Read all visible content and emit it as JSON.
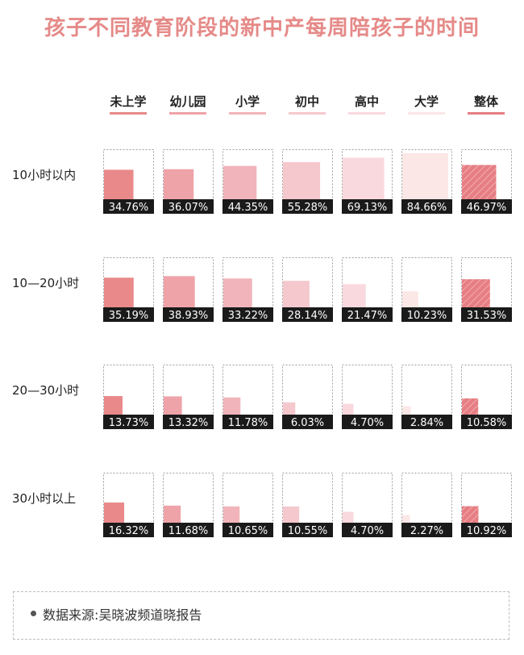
{
  "chart_data": {
    "type": "area",
    "title": "孩子不同教育阶段的新中产每周陪孩子的时间",
    "categories": [
      "未上学",
      "幼儿园",
      "小学",
      "初中",
      "高中",
      "大学",
      "整体"
    ],
    "rows": [
      {
        "label": "10小时以内",
        "labels": [
          "34.76%",
          "36.07%",
          "44.35%",
          "55.28%",
          "69.13%",
          "84.66%",
          "46.97%"
        ],
        "values": [
          34.76,
          36.07,
          44.35,
          55.28,
          69.13,
          84.66,
          46.97
        ]
      },
      {
        "label": "10—20小时",
        "labels": [
          "35.19%",
          "38.93%",
          "33.22%",
          "28.14%",
          "21.47%",
          "10.23%",
          "31.53%"
        ],
        "values": [
          35.19,
          38.93,
          33.22,
          28.14,
          21.47,
          10.23,
          31.53
        ]
      },
      {
        "label": "20—30小时",
        "labels": [
          "13.73%",
          "13.32%",
          "11.78%",
          "6.03%",
          "4.70%",
          "2.84%",
          "10.58%"
        ],
        "values": [
          13.73,
          13.32,
          11.78,
          6.03,
          4.7,
          2.84,
          10.58
        ]
      },
      {
        "label": "30小时以上",
        "labels": [
          "16.32%",
          "11.68%",
          "10.65%",
          "10.55%",
          "4.70%",
          "2.27%",
          "10.92%"
        ],
        "values": [
          16.32,
          11.68,
          10.65,
          10.55,
          4.7,
          2.27,
          10.92
        ]
      }
    ],
    "column_colors": [
      "#e9898a",
      "#eea3a8",
      "#f1b4ba",
      "#f5c8ce",
      "#f9d9de",
      "#fbe7e6",
      "#e67e83"
    ],
    "header_underline_colors": [
      "#e9898a",
      "#eea3a8",
      "#f1b4ba",
      "#f5c8ce",
      "#f9d9de",
      "#fbe7e6",
      "#e67e83"
    ],
    "hatched_column": "整体",
    "max_value": 100
  },
  "source": "数据来源:吴晓波频道晓报告"
}
